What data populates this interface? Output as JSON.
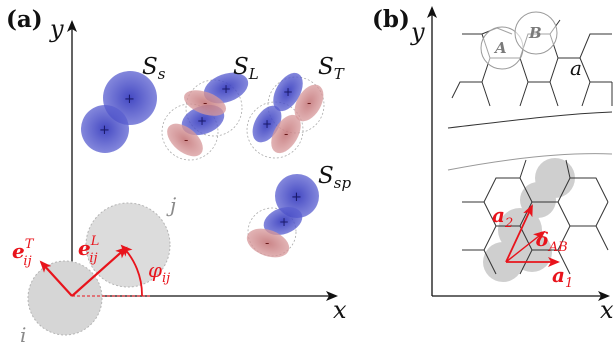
{
  "panel_a": {
    "label": "(a)",
    "x_axis": "x",
    "y_axis": "y",
    "term_s": {
      "base": "S",
      "sub": "s"
    },
    "term_l": {
      "base": "S",
      "sub": "L"
    },
    "term_t": {
      "base": "S",
      "sub": "T"
    },
    "term_sp": {
      "base": "S",
      "sub": "sp"
    },
    "particle_i": "i",
    "particle_j": "j",
    "vector_t": {
      "base": "e",
      "sup": "T",
      "sub": "ij"
    },
    "vector_l": {
      "base": "e",
      "sup": "L",
      "sub": "ij"
    },
    "angle": {
      "base": "φ",
      "sub": "ij"
    }
  },
  "panel_b": {
    "label": "(b)",
    "x_axis": "x",
    "y_axis": "y",
    "site_a": "A",
    "site_b": "B",
    "lattice_const": "a",
    "vec_a2": {
      "base": "a",
      "sub": "2"
    },
    "vec_a1": {
      "base": "a",
      "sub": "1"
    },
    "vec_delta": {
      "base": "δ",
      "sub": "AB"
    }
  },
  "colors": {
    "blue_lobe": "#3a3fbf",
    "red_lobe": "#c4777a",
    "vector_red": "#e8141c",
    "gray_particle": "#d6d6d6"
  }
}
